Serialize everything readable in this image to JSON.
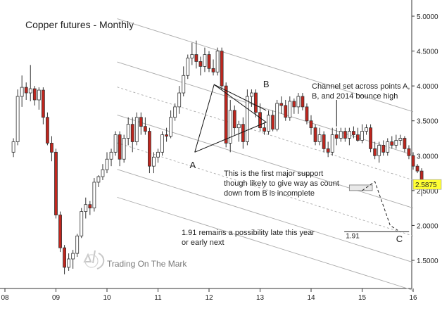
{
  "chart_data": {
    "type": "candlestick",
    "title": "Copper futures - Monthly",
    "xlabel": "",
    "ylabel": "",
    "ylim": [
      1.2,
      5.2
    ],
    "xlim": [
      2008.0,
      2016.0
    ],
    "x_ticks": [
      {
        "v": 2008,
        "label": "08"
      },
      {
        "v": 2009,
        "label": "09"
      },
      {
        "v": 2010,
        "label": "10"
      },
      {
        "v": 2011,
        "label": "11"
      },
      {
        "v": 2012,
        "label": "12"
      },
      {
        "v": 2013,
        "label": "13"
      },
      {
        "v": 2014,
        "label": "14"
      },
      {
        "v": 2015,
        "label": "15"
      },
      {
        "v": 2016,
        "label": "16"
      }
    ],
    "y_ticks": [
      {
        "v": 1.5,
        "label": "1.5000"
      },
      {
        "v": 2.0,
        "label": "2.0000"
      },
      {
        "v": 2.5,
        "label": "2.5000"
      },
      {
        "v": 3.0,
        "label": "3.0000"
      },
      {
        "v": 3.5,
        "label": "3.5000"
      },
      {
        "v": 4.0,
        "label": "4.0000"
      },
      {
        "v": 4.5,
        "label": "4.5000"
      },
      {
        "v": 5.0,
        "label": "5.0000"
      }
    ],
    "last_price": {
      "label": "2.5875",
      "value": 2.5875,
      "color": "#ffff33"
    },
    "colors": {
      "up": "#ffffff",
      "down": "#c0261e",
      "wick": "#333333",
      "channel": "#aaaaaa"
    },
    "candles": [
      {
        "o": 3.05,
        "h": 3.25,
        "l": 2.98,
        "c": 3.2
      },
      {
        "o": 3.2,
        "h": 3.95,
        "l": 3.15,
        "c": 3.85
      },
      {
        "o": 3.85,
        "h": 4.15,
        "l": 3.7,
        "c": 3.98
      },
      {
        "o": 3.98,
        "h": 4.05,
        "l": 3.8,
        "c": 3.9
      },
      {
        "o": 3.9,
        "h": 4.3,
        "l": 3.78,
        "c": 3.96
      },
      {
        "o": 3.96,
        "h": 4.0,
        "l": 3.72,
        "c": 3.8
      },
      {
        "o": 3.8,
        "h": 3.98,
        "l": 3.66,
        "c": 3.94
      },
      {
        "o": 3.94,
        "h": 3.98,
        "l": 3.45,
        "c": 3.55
      },
      {
        "o": 3.55,
        "h": 3.62,
        "l": 3.15,
        "c": 3.18
      },
      {
        "o": 3.18,
        "h": 3.28,
        "l": 2.92,
        "c": 3.05
      },
      {
        "o": 3.05,
        "h": 3.1,
        "l": 2.1,
        "c": 2.15
      },
      {
        "o": 2.15,
        "h": 2.2,
        "l": 1.62,
        "c": 1.68
      },
      {
        "o": 1.68,
        "h": 1.72,
        "l": 1.3,
        "c": 1.4
      },
      {
        "o": 1.4,
        "h": 1.6,
        "l": 1.35,
        "c": 1.52
      },
      {
        "o": 1.52,
        "h": 1.65,
        "l": 1.38,
        "c": 1.6
      },
      {
        "o": 1.6,
        "h": 1.88,
        "l": 1.55,
        "c": 1.85
      },
      {
        "o": 1.85,
        "h": 2.25,
        "l": 1.82,
        "c": 2.2
      },
      {
        "o": 2.2,
        "h": 2.4,
        "l": 2.1,
        "c": 2.3
      },
      {
        "o": 2.3,
        "h": 2.35,
        "l": 2.15,
        "c": 2.25
      },
      {
        "o": 2.25,
        "h": 2.68,
        "l": 2.2,
        "c": 2.62
      },
      {
        "o": 2.62,
        "h": 2.72,
        "l": 2.55,
        "c": 2.7
      },
      {
        "o": 2.7,
        "h": 2.88,
        "l": 2.65,
        "c": 2.8
      },
      {
        "o": 2.8,
        "h": 3.05,
        "l": 2.75,
        "c": 2.95
      },
      {
        "o": 2.95,
        "h": 3.1,
        "l": 2.85,
        "c": 3.05
      },
      {
        "o": 3.05,
        "h": 3.35,
        "l": 3.0,
        "c": 3.3
      },
      {
        "o": 3.3,
        "h": 3.35,
        "l": 2.85,
        "c": 2.95
      },
      {
        "o": 2.95,
        "h": 3.3,
        "l": 2.9,
        "c": 3.25
      },
      {
        "o": 3.25,
        "h": 3.55,
        "l": 3.15,
        "c": 3.45
      },
      {
        "o": 3.45,
        "h": 3.55,
        "l": 3.05,
        "c": 3.2
      },
      {
        "o": 3.2,
        "h": 3.62,
        "l": 3.15,
        "c": 3.55
      },
      {
        "o": 3.55,
        "h": 3.62,
        "l": 3.3,
        "c": 3.42
      },
      {
        "o": 3.42,
        "h": 3.55,
        "l": 3.3,
        "c": 3.35
      },
      {
        "o": 3.35,
        "h": 3.4,
        "l": 2.75,
        "c": 2.85
      },
      {
        "o": 2.85,
        "h": 3.05,
        "l": 2.75,
        "c": 2.98
      },
      {
        "o": 2.98,
        "h": 3.1,
        "l": 2.9,
        "c": 3.05
      },
      {
        "o": 3.05,
        "h": 3.35,
        "l": 3.0,
        "c": 3.3
      },
      {
        "o": 3.3,
        "h": 3.4,
        "l": 3.2,
        "c": 3.28
      },
      {
        "o": 3.28,
        "h": 3.65,
        "l": 3.25,
        "c": 3.55
      },
      {
        "o": 3.55,
        "h": 3.75,
        "l": 3.5,
        "c": 3.7
      },
      {
        "o": 3.7,
        "h": 4.0,
        "l": 3.6,
        "c": 3.9
      },
      {
        "o": 3.9,
        "h": 4.28,
        "l": 3.85,
        "c": 4.15
      },
      {
        "o": 4.15,
        "h": 4.45,
        "l": 4.1,
        "c": 4.4
      },
      {
        "o": 4.4,
        "h": 4.62,
        "l": 4.3,
        "c": 4.45
      },
      {
        "o": 4.45,
        "h": 4.65,
        "l": 4.25,
        "c": 4.35
      },
      {
        "o": 4.35,
        "h": 4.42,
        "l": 4.15,
        "c": 4.28
      },
      {
        "o": 4.28,
        "h": 4.55,
        "l": 4.2,
        "c": 4.45
      },
      {
        "o": 4.45,
        "h": 4.5,
        "l": 4.2,
        "c": 4.25
      },
      {
        "o": 4.25,
        "h": 4.38,
        "l": 4.15,
        "c": 4.2
      },
      {
        "o": 4.2,
        "h": 4.55,
        "l": 4.15,
        "c": 4.5
      },
      {
        "o": 4.5,
        "h": 4.55,
        "l": 3.95,
        "c": 4.0
      },
      {
        "o": 4.0,
        "h": 4.05,
        "l": 3.12,
        "c": 3.18
      },
      {
        "o": 3.18,
        "h": 3.8,
        "l": 3.05,
        "c": 3.65
      },
      {
        "o": 3.65,
        "h": 3.72,
        "l": 3.3,
        "c": 3.4
      },
      {
        "o": 3.4,
        "h": 3.5,
        "l": 3.2,
        "c": 3.45
      },
      {
        "o": 3.45,
        "h": 3.55,
        "l": 3.1,
        "c": 3.2
      },
      {
        "o": 3.2,
        "h": 3.95,
        "l": 3.15,
        "c": 3.85
      },
      {
        "o": 3.85,
        "h": 3.95,
        "l": 3.7,
        "c": 3.9
      },
      {
        "o": 3.9,
        "h": 3.95,
        "l": 3.55,
        "c": 3.62
      },
      {
        "o": 3.62,
        "h": 3.75,
        "l": 3.35,
        "c": 3.4
      },
      {
        "o": 3.4,
        "h": 3.48,
        "l": 3.3,
        "c": 3.35
      },
      {
        "o": 3.35,
        "h": 3.65,
        "l": 3.3,
        "c": 3.58
      },
      {
        "o": 3.58,
        "h": 3.65,
        "l": 3.35,
        "c": 3.38
      },
      {
        "o": 3.38,
        "h": 3.8,
        "l": 3.35,
        "c": 3.75
      },
      {
        "o": 3.75,
        "h": 3.85,
        "l": 3.6,
        "c": 3.72
      },
      {
        "o": 3.72,
        "h": 3.8,
        "l": 3.5,
        "c": 3.55
      },
      {
        "o": 3.55,
        "h": 3.85,
        "l": 3.5,
        "c": 3.78
      },
      {
        "o": 3.78,
        "h": 3.82,
        "l": 3.6,
        "c": 3.7
      },
      {
        "o": 3.7,
        "h": 3.9,
        "l": 3.6,
        "c": 3.85
      },
      {
        "o": 3.85,
        "h": 3.9,
        "l": 3.65,
        "c": 3.7
      },
      {
        "o": 3.7,
        "h": 3.75,
        "l": 3.45,
        "c": 3.5
      },
      {
        "o": 3.5,
        "h": 3.58,
        "l": 3.3,
        "c": 3.4
      },
      {
        "o": 3.4,
        "h": 3.45,
        "l": 3.15,
        "c": 3.2
      },
      {
        "o": 3.2,
        "h": 3.4,
        "l": 3.15,
        "c": 3.3
      },
      {
        "o": 3.3,
        "h": 3.35,
        "l": 3.05,
        "c": 3.1
      },
      {
        "o": 3.1,
        "h": 3.2,
        "l": 2.98,
        "c": 3.05
      },
      {
        "o": 3.05,
        "h": 3.4,
        "l": 3.0,
        "c": 3.3
      },
      {
        "o": 3.3,
        "h": 3.4,
        "l": 3.15,
        "c": 3.25
      },
      {
        "o": 3.25,
        "h": 3.4,
        "l": 3.2,
        "c": 3.35
      },
      {
        "o": 3.35,
        "h": 3.4,
        "l": 3.2,
        "c": 3.25
      },
      {
        "o": 3.25,
        "h": 3.4,
        "l": 3.15,
        "c": 3.35
      },
      {
        "o": 3.35,
        "h": 3.42,
        "l": 3.25,
        "c": 3.3
      },
      {
        "o": 3.3,
        "h": 3.4,
        "l": 3.2,
        "c": 3.22
      },
      {
        "o": 3.22,
        "h": 3.45,
        "l": 3.18,
        "c": 3.35
      },
      {
        "o": 3.35,
        "h": 3.45,
        "l": 3.3,
        "c": 3.4
      },
      {
        "o": 3.4,
        "h": 3.45,
        "l": 3.05,
        "c": 3.1
      },
      {
        "o": 3.1,
        "h": 3.2,
        "l": 2.95,
        "c": 3.0
      },
      {
        "o": 3.0,
        "h": 3.2,
        "l": 2.9,
        "c": 3.15
      },
      {
        "o": 3.15,
        "h": 3.22,
        "l": 3.0,
        "c": 3.05
      },
      {
        "o": 3.05,
        "h": 3.25,
        "l": 3.0,
        "c": 3.2
      },
      {
        "o": 3.2,
        "h": 3.28,
        "l": 3.1,
        "c": 3.15
      },
      {
        "o": 3.15,
        "h": 3.3,
        "l": 3.1,
        "c": 3.22
      },
      {
        "o": 3.22,
        "h": 3.3,
        "l": 3.15,
        "c": 3.25
      },
      {
        "o": 3.25,
        "h": 3.28,
        "l": 3.05,
        "c": 3.1
      },
      {
        "o": 3.1,
        "h": 3.15,
        "l": 2.95,
        "c": 3.0
      },
      {
        "o": 3.0,
        "h": 3.05,
        "l": 2.8,
        "c": 2.85
      },
      {
        "o": 2.85,
        "h": 2.88,
        "l": 2.75,
        "c": 2.78
      },
      {
        "o": 2.78,
        "h": 2.82,
        "l": 2.42,
        "c": 2.5875
      }
    ],
    "labels": [
      {
        "text": "A",
        "x": 2011.68,
        "y": 2.82
      },
      {
        "text": "B",
        "x": 13.1,
        "y": 0
      },
      {
        "text": "C",
        "x": 2015.73,
        "y": 1.76
      },
      {
        "text": "1.91",
        "x": 2014.68,
        "y": 1.82
      }
    ],
    "annotations": {
      "channel_note": [
        "Channel set across points A,",
        "B, and 2014 bounce high"
      ],
      "support_note": [
        "This is the first major support",
        "though likely to give way as count",
        "down from B is incomplete"
      ],
      "forecast_note": [
        "1.91 remains a possibility late this year",
        "or early next"
      ]
    },
    "watermark": "Trading On The Mark"
  }
}
